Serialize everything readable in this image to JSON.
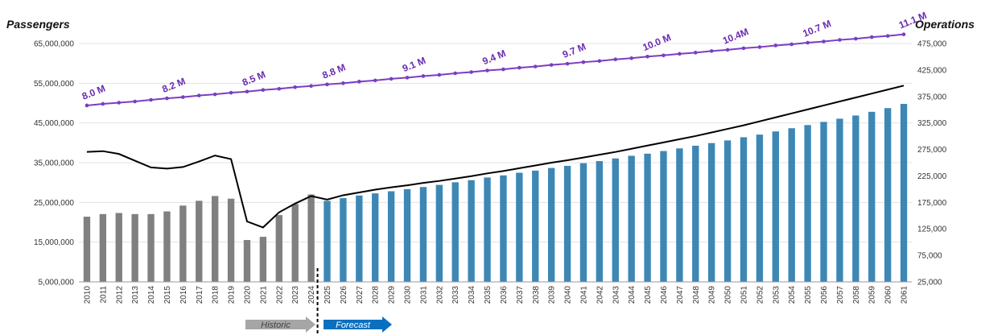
{
  "chart_data": {
    "type": "bar",
    "left_axis_title": "Passengers",
    "right_axis_title": "Operations",
    "left_axis": {
      "min": 5000000,
      "max": 65000000,
      "ticks": [
        "5,000,000",
        "15,000,000",
        "25,000,000",
        "35,000,000",
        "45,000,000",
        "55,000,000",
        "65,000,000"
      ],
      "tick_values": [
        5000000,
        15000000,
        25000000,
        35000000,
        45000000,
        55000000,
        65000000
      ]
    },
    "right_axis": {
      "min": 25000,
      "max": 475000,
      "ticks": [
        "25,000",
        "75,000",
        "125,000",
        "175,000",
        "225,000",
        "275,000",
        "325,000",
        "375,000",
        "425,000",
        "475,000"
      ],
      "tick_values": [
        25000,
        75000,
        125000,
        175000,
        225000,
        275000,
        325000,
        375000,
        425000,
        475000
      ]
    },
    "categories": [
      "2010",
      "2011",
      "2012",
      "2013",
      "2014",
      "2015",
      "2016",
      "2017",
      "2018",
      "2019",
      "2020",
      "2021",
      "2022",
      "2023",
      "2024",
      "2025",
      "2026",
      "2027",
      "2028",
      "2029",
      "2030",
      "2031",
      "2032",
      "2033",
      "2034",
      "2035",
      "2036",
      "2037",
      "2038",
      "2039",
      "2040",
      "2041",
      "2042",
      "2043",
      "2044",
      "2045",
      "2046",
      "2047",
      "2048",
      "2049",
      "2050",
      "2051",
      "2052",
      "2053",
      "2054",
      "2055",
      "2056",
      "2057",
      "2058",
      "2059",
      "2060",
      "2061"
    ],
    "series": [
      {
        "kind": "bar",
        "axis": "right",
        "color_historic": "#808080",
        "color_forecast": "#3d87b5",
        "forecast_start_index": 15,
        "values": [
          148000,
          153000,
          155000,
          153000,
          153000,
          158000,
          169000,
          178000,
          187000,
          182000,
          104000,
          110000,
          151000,
          172000,
          190000,
          178000,
          183000,
          188000,
          192000,
          196000,
          200000,
          204000,
          208000,
          213000,
          217000,
          222000,
          226000,
          231000,
          235000,
          240000,
          244000,
          249000,
          253000,
          258000,
          263000,
          267000,
          272000,
          277000,
          282000,
          287000,
          292000,
          298000,
          303000,
          309000,
          315000,
          321000,
          327000,
          333000,
          339000,
          346000,
          353000,
          361000
        ]
      },
      {
        "kind": "line",
        "axis": "left",
        "color": "#000000",
        "values": [
          37700000,
          37900000,
          37200000,
          35500000,
          33800000,
          33500000,
          33900000,
          35300000,
          36800000,
          35900000,
          20200000,
          18700000,
          22500000,
          24700000,
          26600000,
          25700000,
          26800000,
          27500000,
          28200000,
          28800000,
          29300000,
          29900000,
          30400000,
          31000000,
          31600000,
          32300000,
          32900000,
          33600000,
          34300000,
          35000000,
          35600000,
          36300000,
          37000000,
          37700000,
          38500000,
          39300000,
          40100000,
          40900000,
          41700000,
          42600000,
          43500000,
          44400000,
          45400000,
          46400000,
          47400000,
          48400000,
          49400000,
          50400000,
          51400000,
          52400000,
          53400000,
          54400000
        ]
      },
      {
        "kind": "line-markers",
        "axis": "left",
        "color": "#7a3ec0",
        "values": [
          49400000,
          49800000,
          50100000,
          50400000,
          50800000,
          51200000,
          51500000,
          51900000,
          52200000,
          52600000,
          52900000,
          53300000,
          53600000,
          54000000,
          54300000,
          54700000,
          55000000,
          55400000,
          55700000,
          56100000,
          56400000,
          56800000,
          57100000,
          57500000,
          57800000,
          58200000,
          58500000,
          58900000,
          59200000,
          59600000,
          59900000,
          60300000,
          60600000,
          61000000,
          61300000,
          61700000,
          62000000,
          62400000,
          62700000,
          63100000,
          63400000,
          63800000,
          64100000,
          64500000,
          64800000,
          65200000,
          65500000,
          65900000,
          66200000,
          66600000,
          66900000,
          67300000
        ]
      }
    ],
    "annotations": [
      {
        "text": "8.0 M",
        "index": 0
      },
      {
        "text": "8.2 M",
        "index": 5
      },
      {
        "text": "8.5 M",
        "index": 10
      },
      {
        "text": "8.8 M",
        "index": 15
      },
      {
        "text": "9.1 M",
        "index": 20
      },
      {
        "text": "9.4 M",
        "index": 25
      },
      {
        "text": "9.7 M",
        "index": 30
      },
      {
        "text": "10.0 M",
        "index": 35
      },
      {
        "text": "10.4M",
        "index": 40
      },
      {
        "text": "10.7 M",
        "index": 45
      },
      {
        "text": "11.1 M",
        "index": 51
      }
    ],
    "arrows": [
      {
        "text": "Historic",
        "color": "#a6a6a6",
        "text_color": "#444444"
      },
      {
        "text": "Forecast",
        "color": "#0a6fbf",
        "text_color": "#ffffff"
      }
    ],
    "grid": true
  }
}
